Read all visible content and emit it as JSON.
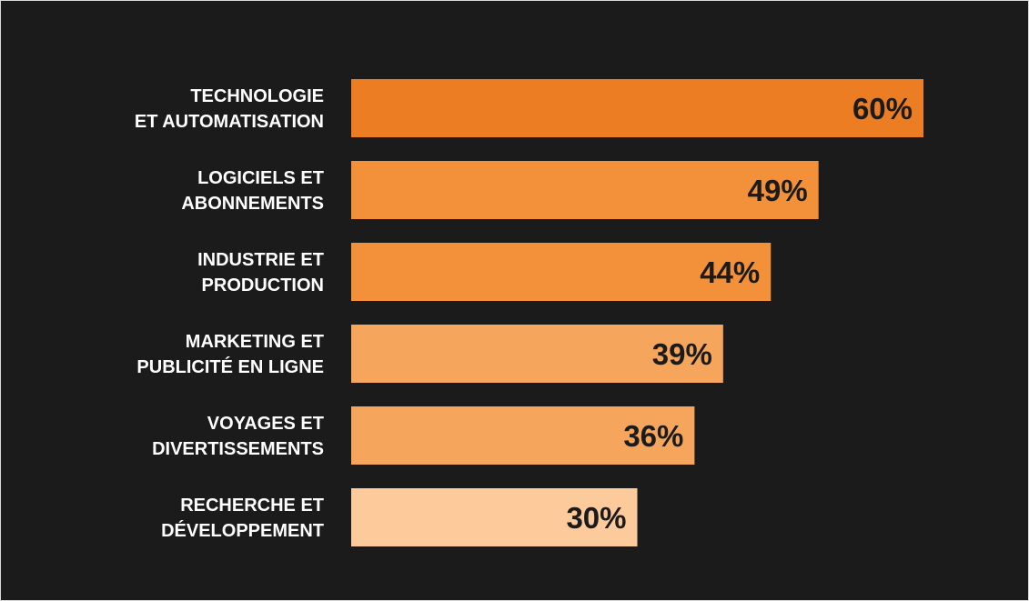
{
  "chart_data": {
    "type": "bar",
    "orientation": "horizontal",
    "title": "",
    "xlabel": "",
    "ylabel": "",
    "xlim": [
      0,
      60
    ],
    "grid": false,
    "categories": [
      [
        "TECHNOLOGIE",
        "ET AUTOMATISATION"
      ],
      [
        "LOGICIELS ET",
        "ABONNEMENTS"
      ],
      [
        "INDUSTRIE ET",
        "PRODUCTION"
      ],
      [
        "MARKETING ET",
        "PUBLICITÉ EN LIGNE"
      ],
      [
        "VOYAGES ET",
        "DIVERTISSEMENTS"
      ],
      [
        "RECHERCHE ET",
        "DÉVELOPPEMENT"
      ]
    ],
    "values": [
      60,
      49,
      44,
      39,
      36,
      30
    ],
    "value_labels": [
      "60%",
      "49%",
      "44%",
      "39%",
      "36%",
      "30%"
    ],
    "colors": [
      "#ED7D22",
      "#F2913A",
      "#F2913A",
      "#F5A55C",
      "#F5A55C",
      "#FDCA9B"
    ],
    "background": "#1B1B1B"
  }
}
